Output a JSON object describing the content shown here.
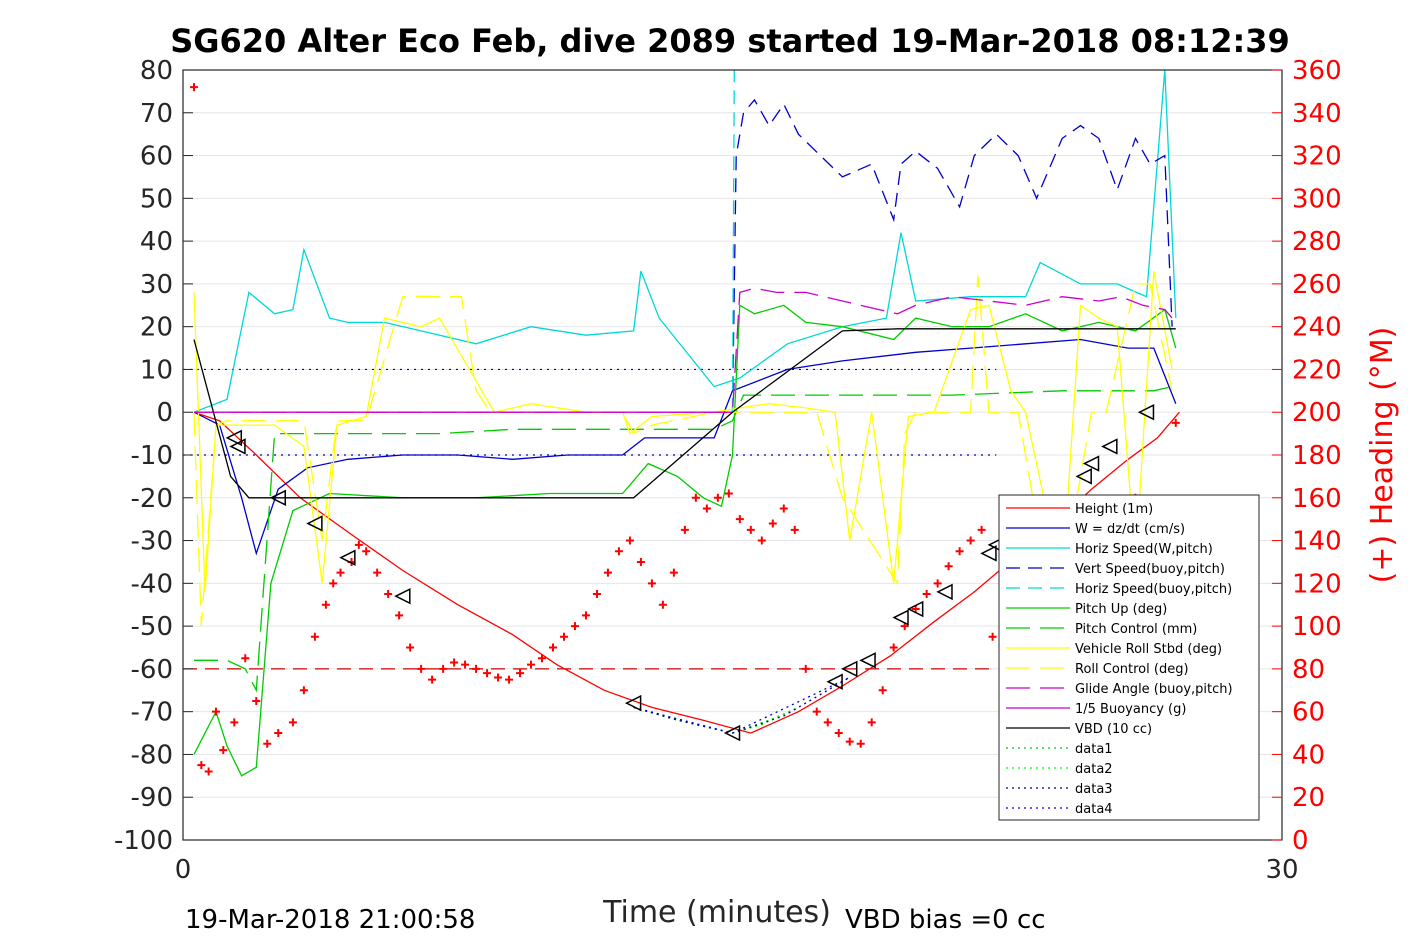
{
  "chart_data": {
    "type": "line",
    "title": "SG620 Alter Eco Feb, dive 2089 started 19-Mar-2018 08:12:39",
    "xlabel": "Time (minutes)",
    "ylabel": "",
    "ylabel_right": "(+) Heading (°M)",
    "xlim": [
      0,
      30
    ],
    "ylim": [
      -100,
      80
    ],
    "ylim_right": [
      0,
      360
    ],
    "x_ticks": [
      "0",
      "30"
    ],
    "y_ticks": [
      "80",
      "70",
      "60",
      "50",
      "40",
      "30",
      "20",
      "10",
      "0",
      "-10",
      "-20",
      "-30",
      "-40",
      "-50",
      "-60",
      "-70",
      "-80",
      "-90",
      "-100"
    ],
    "y_ticks_right": [
      "360",
      "340",
      "320",
      "300",
      "280",
      "260",
      "240",
      "220",
      "200",
      "180",
      "160",
      "140",
      "120",
      "100",
      "80",
      "60",
      "40",
      "20",
      "0"
    ],
    "grid": true,
    "legend_position": "lower-right",
    "footer_left": "19-Mar-2018 21:00:58",
    "footer_right": "VBD bias =0 cc",
    "reference_lines": [
      {
        "y": 10,
        "color": "#0000aa",
        "style": "dotted"
      },
      {
        "y": -10,
        "color": "#0000aa",
        "style": "dotted"
      },
      {
        "y": -60,
        "color": "#cc0000",
        "style": "dashed"
      }
    ],
    "series": [
      {
        "name": "Height (1m)",
        "color": "#ff0000",
        "dash": "",
        "x": [
          0.3,
          1.0,
          2.0,
          3.2,
          4.5,
          6.0,
          7.5,
          9.0,
          10.2,
          11.5,
          12.8,
          14.2,
          15.5,
          16.8,
          18.0,
          19.3,
          20.5,
          21.6,
          22.7,
          23.8,
          24.8,
          25.8,
          26.6,
          27.2
        ],
        "y": [
          0,
          -2,
          -10,
          -20,
          -28,
          -37,
          -45,
          -52,
          -59,
          -65,
          -69,
          -72,
          -75,
          -70,
          -64,
          -57,
          -49,
          -42,
          -34,
          -26,
          -18,
          -11,
          -6,
          0
        ]
      },
      {
        "name": "W = dz/dt (cm/s)",
        "color": "#0000cc",
        "dash": "",
        "x": [
          0.3,
          1.0,
          1.6,
          2.0,
          2.6,
          3.4,
          4.5,
          6.0,
          7.5,
          9.0,
          10.5,
          12.0,
          12.6,
          13.5,
          14.5,
          15.0,
          16.5,
          18.0,
          20.0,
          21.5,
          23.0,
          24.5,
          25.8,
          26.5,
          27.1
        ],
        "y": [
          0,
          -3,
          -20,
          -33,
          -18,
          -13,
          -11,
          -10,
          -10,
          -11,
          -10,
          -10,
          -6,
          -6,
          -6,
          5,
          10,
          12,
          14,
          15,
          16,
          17,
          15,
          15,
          2
        ]
      },
      {
        "name": "Horiz Speed(W,pitch)",
        "color": "#00d7d7",
        "dash": "",
        "x": [
          0.3,
          1.2,
          1.8,
          2.5,
          3.0,
          3.3,
          4.0,
          4.5,
          5.5,
          6.5,
          8.0,
          9.5,
          11.0,
          12.3,
          12.5,
          13.0,
          14.5,
          15.2,
          16.5,
          18.0,
          19.2,
          19.6,
          20.0,
          21.5,
          23.0,
          23.4,
          24.5,
          25.5,
          26.3,
          26.8,
          27.1
        ],
        "y": [
          0,
          3,
          28,
          23,
          24,
          38,
          22,
          21,
          21,
          19,
          16,
          20,
          18,
          19,
          33,
          22,
          6,
          8,
          16,
          20,
          22,
          42,
          26,
          27,
          27,
          35,
          30,
          30,
          27,
          80,
          22
        ]
      },
      {
        "name": "Vert Speed(buoy,pitch)",
        "color": "#0000cc",
        "dash": "14,8",
        "x": [
          15.0,
          15.1,
          15.3,
          15.6,
          16.0,
          16.4,
          16.8,
          17.4,
          18.0,
          18.8,
          19.4,
          19.6,
          20.0,
          20.6,
          21.2,
          21.6,
          22.2,
          22.8,
          23.3,
          24.0,
          24.5,
          25.0,
          25.5,
          26.0,
          26.4,
          26.8,
          27.0
        ],
        "y": [
          0,
          60,
          70,
          73,
          67,
          72,
          65,
          60,
          55,
          58,
          45,
          58,
          61,
          57,
          48,
          60,
          65,
          60,
          50,
          64,
          67,
          64,
          52,
          64,
          58,
          60,
          20
        ]
      },
      {
        "name": "Horiz Speed(buoy,pitch)",
        "color": "#00d7d7",
        "dash": "14,8",
        "x": [
          15.0,
          15.05
        ],
        "y": [
          0,
          80
        ]
      },
      {
        "name": "Pitch Up (deg)",
        "color": "#00cc00",
        "dash": "",
        "x": [
          0.3,
          0.9,
          1.2,
          1.6,
          2.0,
          2.4,
          3.0,
          4.0,
          6.0,
          8.0,
          10.0,
          12.0,
          12.7,
          13.5,
          14.2,
          14.7,
          15.0,
          15.2,
          15.6,
          16.4,
          17.0,
          18.0,
          19.4,
          20.0,
          21.0,
          22.0,
          23.0,
          24.0,
          25.0,
          26.0,
          26.8,
          27.1
        ],
        "y": [
          -80,
          -70,
          -78,
          -85,
          -83,
          -40,
          -23,
          -19,
          -20,
          -20,
          -19,
          -19,
          -12,
          -15,
          -20,
          -22,
          -10,
          25,
          23,
          25,
          21,
          20,
          17,
          22,
          20,
          20,
          23,
          19,
          21,
          19,
          24,
          15
        ]
      },
      {
        "name": "Pitch Control (mm)",
        "color": "#00cc00",
        "dash": "24,10",
        "x": [
          0.3,
          1.2,
          1.7,
          2.0,
          2.5,
          5.0,
          7.0,
          9.0,
          12.0,
          14.5,
          15.0,
          15.3,
          18.0,
          21.0,
          24.0,
          26.5,
          27.0
        ],
        "y": [
          -58,
          -58,
          -60,
          -65,
          -5,
          -5,
          -5,
          -4,
          -4,
          -4,
          -2,
          4,
          4,
          4,
          5,
          5,
          6
        ]
      },
      {
        "name": "Vehicle Roll Stbd (deg)",
        "color": "#ffff00",
        "dash": "",
        "x": [
          0.3,
          0.6,
          0.9,
          1.2,
          1.6,
          2.0,
          2.5,
          3.3,
          3.8,
          4.2,
          5.0,
          5.5,
          6.5,
          7.0,
          8.5,
          9.5,
          11.0,
          12.0,
          12.2,
          12.8,
          14.5,
          15.2,
          16.0,
          17.0,
          17.8,
          18.2,
          18.8,
          19.4,
          19.8,
          20.5,
          21.5,
          22.0,
          22.6,
          23.0,
          23.5,
          24.0,
          24.5,
          25.0,
          25.5,
          26.0,
          26.5,
          27.0
        ],
        "y": [
          28,
          -42,
          -3,
          -3,
          -3,
          -3,
          -3,
          -8,
          -40,
          -3,
          -1,
          22,
          20,
          22,
          0,
          2,
          0,
          0,
          -5,
          -1,
          0,
          1,
          2,
          1,
          0,
          -30,
          0,
          -40,
          -1,
          0,
          24,
          25,
          5,
          0,
          -20,
          -40,
          25,
          22,
          20,
          -35,
          33,
          10
        ]
      },
      {
        "name": "Roll Control (deg)",
        "color": "#ffff00",
        "dash": "24,10",
        "x": [
          0.3,
          0.5,
          0.9,
          1.2,
          2.0,
          3.3,
          3.8,
          4.2,
          5.0,
          6.0,
          7.0,
          7.6,
          8.0,
          8.4,
          9.5,
          12.0,
          12.3,
          12.8,
          14.5,
          17.3,
          18.0,
          19.5,
          19.7,
          20.0,
          21.5,
          21.7,
          22.0,
          22.8,
          23.4,
          24.0,
          24.8,
          25.2,
          26.0,
          26.4,
          27.0
        ],
        "y": [
          0,
          -50,
          -3,
          -2,
          -2,
          -2,
          -30,
          -2,
          -2,
          27,
          27,
          27,
          5,
          0,
          0,
          0,
          -5,
          -3,
          0,
          0,
          -20,
          -40,
          -5,
          0,
          0,
          32,
          0,
          0,
          -30,
          -40,
          0,
          0,
          30,
          30,
          5
        ]
      },
      {
        "name": "Glide Angle (buoy,pitch)",
        "color": "#cc00cc",
        "dash": "24,10",
        "x": [
          0.3,
          15.0,
          15.2,
          15.6,
          16.2,
          17.0,
          18.0,
          19.0,
          19.5,
          20.0,
          21.0,
          22.0,
          23.0,
          24.0,
          25.0,
          25.6,
          26.2,
          26.8,
          27.0
        ],
        "y": [
          0,
          0,
          28,
          29,
          28,
          28,
          26,
          24,
          23,
          25,
          27,
          26,
          25,
          27,
          26,
          27,
          25,
          24,
          22
        ]
      },
      {
        "name": "1/5 Buoyancy (g)",
        "color": "#cc00cc",
        "dash": "",
        "x": [
          0.3,
          15.0
        ],
        "y": [
          0,
          0
        ]
      },
      {
        "name": "VBD (10 cc)",
        "color": "#000000",
        "dash": "",
        "x": [
          0.3,
          1.3,
          1.8,
          4.0,
          8.0,
          12.3,
          15.0,
          18.0,
          19.5,
          27.1
        ],
        "y": [
          17,
          -15,
          -20,
          -20,
          -20,
          -20,
          0,
          19,
          19.5,
          19.5
        ]
      },
      {
        "name": "data1",
        "color": "#00cc00",
        "dash": "2,4",
        "x": [
          12.3,
          13.5,
          14.5,
          15.0,
          15.8,
          16.8
        ],
        "y": [
          -69,
          -72,
          -74,
          -75,
          -73,
          -69
        ]
      },
      {
        "name": "data2",
        "color": "#00ff00",
        "dash": "2,4",
        "x": [
          12.3,
          14.0,
          15.0,
          16.0,
          16.8
        ],
        "y": [
          -69,
          -73,
          -75,
          -72,
          -69
        ]
      },
      {
        "name": "data3",
        "color": "#000080",
        "dash": "2,4",
        "x": [
          12.3,
          13.5,
          15.0,
          16.4,
          18.2
        ],
        "y": [
          -69,
          -72,
          -75,
          -71,
          -62
        ]
      },
      {
        "name": "data4",
        "color": "#0000cc",
        "dash": "2,4",
        "x": [
          12.3,
          15.0,
          18.2
        ],
        "y": [
          -69,
          -75,
          -62
        ]
      }
    ],
    "heading": {
      "name": "(+) Heading (°M)",
      "color": "#ff0000",
      "marker": "+",
      "x": [
        0.3,
        0.5,
        0.7,
        0.9,
        1.1,
        1.4,
        1.7,
        2.0,
        2.3,
        2.6,
        3.0,
        3.3,
        3.6,
        3.9,
        4.1,
        4.3,
        4.6,
        4.8,
        5.0,
        5.3,
        5.6,
        5.9,
        6.2,
        6.5,
        6.8,
        7.1,
        7.4,
        7.7,
        8.0,
        8.3,
        8.6,
        8.9,
        9.2,
        9.5,
        9.8,
        10.1,
        10.4,
        10.7,
        11.0,
        11.3,
        11.6,
        11.9,
        12.2,
        12.5,
        12.8,
        13.1,
        13.4,
        13.7,
        14.0,
        14.3,
        14.6,
        14.9,
        15.2,
        15.5,
        15.8,
        16.1,
        16.4,
        16.7,
        17.0,
        17.3,
        17.6,
        17.9,
        18.2,
        18.5,
        18.8,
        19.1,
        19.4,
        19.7,
        20.0,
        20.3,
        20.6,
        20.9,
        21.2,
        21.5,
        21.8,
        22.1,
        22.4,
        22.7,
        23.0,
        23.3,
        23.6,
        23.9,
        24.2,
        24.5,
        24.8,
        25.1,
        25.4,
        25.7,
        26.0,
        26.3,
        26.6,
        26.9,
        27.1
      ],
      "y": [
        352,
        35,
        32,
        60,
        42,
        55,
        85,
        65,
        45,
        50,
        55,
        70,
        95,
        110,
        120,
        125,
        130,
        138,
        135,
        125,
        115,
        105,
        90,
        80,
        75,
        80,
        83,
        82,
        80,
        78,
        76,
        75,
        78,
        82,
        85,
        90,
        95,
        100,
        105,
        115,
        125,
        135,
        140,
        130,
        120,
        110,
        125,
        145,
        160,
        155,
        160,
        162,
        150,
        145,
        140,
        148,
        155,
        145,
        80,
        60,
        55,
        50,
        46,
        45,
        55,
        70,
        90,
        100,
        108,
        115,
        120,
        128,
        135,
        140,
        145,
        95,
        75,
        55,
        50,
        42,
        40,
        45,
        60,
        70,
        80,
        110,
        130,
        148,
        160,
        155,
        120,
        100,
        195
      ]
    },
    "triangles": {
      "color": "#000000",
      "x": [
        1.4,
        1.5,
        2.6,
        3.6,
        4.5,
        6.0,
        12.3,
        15.0,
        17.8,
        18.2,
        18.7,
        19.6,
        20.0,
        20.8,
        22.0,
        22.2,
        22.6,
        23.0,
        24.6,
        24.8,
        25.3,
        26.3
      ],
      "y": [
        -6,
        -8,
        -20,
        -26,
        -34,
        -43,
        -68,
        -75,
        -63,
        -60,
        -58,
        -48,
        -46,
        -42,
        -33,
        -31,
        -27,
        -26,
        -15,
        -12,
        -8,
        0
      ]
    }
  }
}
